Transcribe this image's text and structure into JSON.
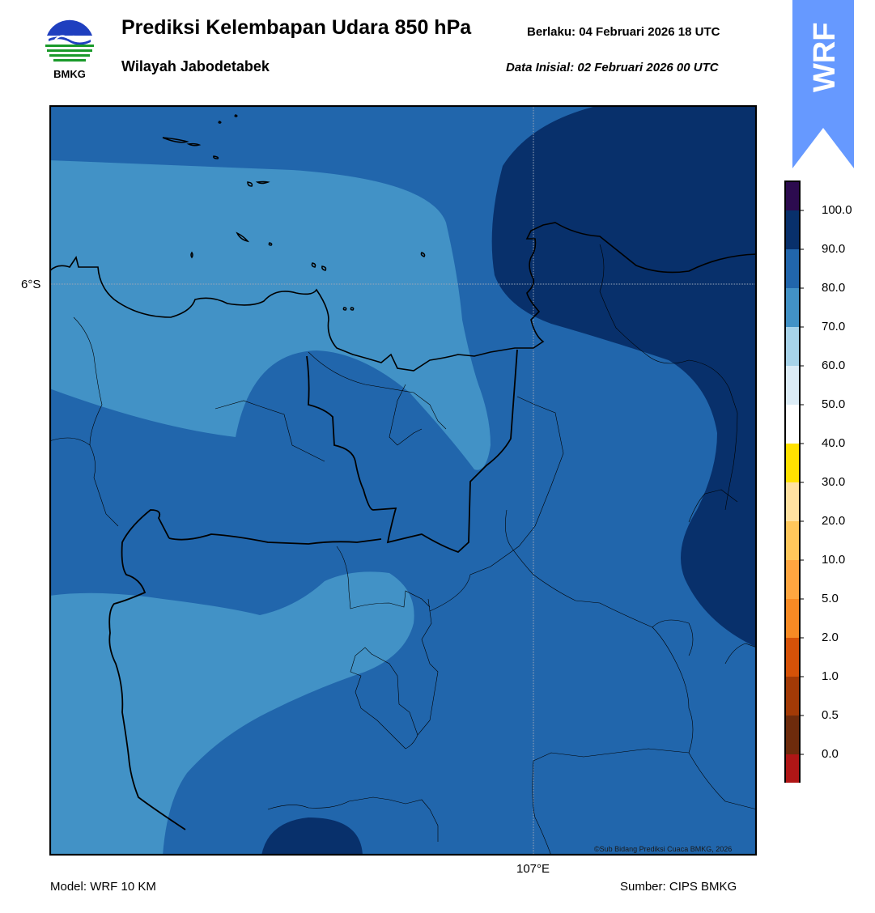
{
  "header": {
    "title": "Prediksi Kelembapan Udara 850 hPa",
    "region": "Wilayah Jabodetabek",
    "valid_label": "Berlaku:  04 Februari 2026 18 UTC",
    "init_label": "Data Inisial:  02 Februari 2026 00 UTC"
  },
  "logo": {
    "text": "BMKG",
    "icon": "bmkg-logo"
  },
  "wrf_badge": {
    "text": "WRF",
    "color": "#6699ff",
    "icon": "wrf-arrow-banner"
  },
  "map": {
    "lat_label": "6°S",
    "lon_label": "107°E",
    "copyright": "©Sub Bidang Prediksi Cuaca BMKG, 2026",
    "zones": [
      {
        "name": "70-80",
        "color": "#4292c6"
      },
      {
        "name": "80-90",
        "color": "#2166ac"
      },
      {
        "name": "90-100",
        "color": "#08306b"
      }
    ],
    "colors": {
      "frame": "#000000",
      "province_border": "#000000",
      "district_border": "#000000",
      "graticule": "#9aa6b8"
    }
  },
  "colorbar": {
    "ticks": [
      "100.0",
      "90.0",
      "80.0",
      "70.0",
      "60.0",
      "50.0",
      "40.0",
      "30.0",
      "20.0",
      "10.0",
      "5.0",
      "2.0",
      "1.0",
      "0.5",
      "0.0"
    ],
    "colors": [
      "#2c0b4f",
      "#08306b",
      "#2166ac",
      "#4292c6",
      "#a7d3e9",
      "#dcecf6",
      "#ffffff",
      "#ffe100",
      "#ffe1a0",
      "#ffc75b",
      "#ffa640",
      "#f78a24",
      "#d65208",
      "#a33a06",
      "#6e2b0c",
      "#b01616",
      "#e8392c"
    ]
  },
  "footer": {
    "model": "Model: WRF 10 KM",
    "source": "Sumber: CIPS BMKG"
  }
}
